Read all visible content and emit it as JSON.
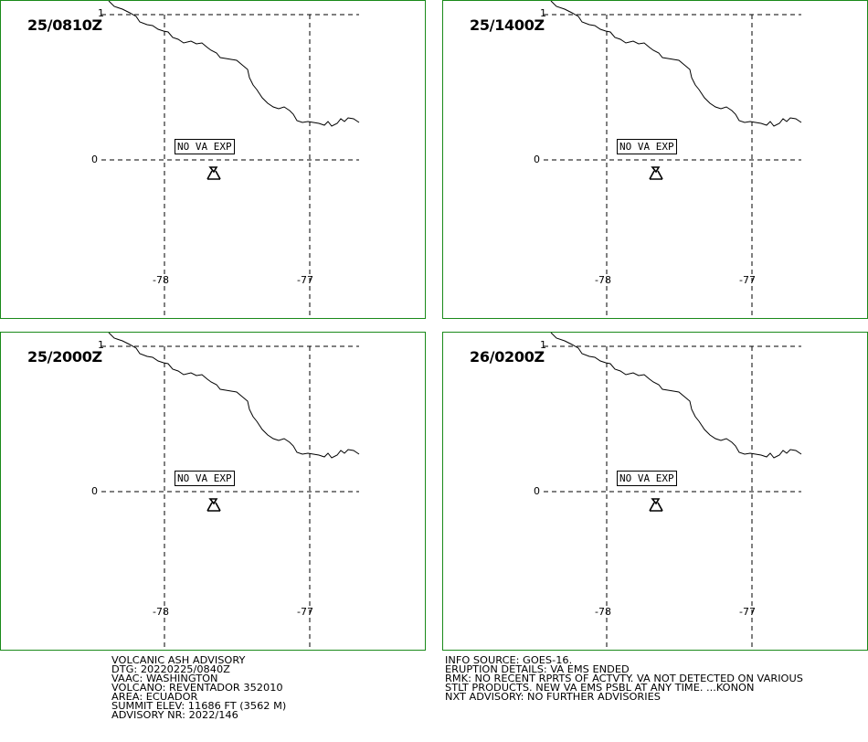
{
  "advisory": {
    "left_lines": [
      "VOLCANIC ASH ADVISORY",
      "DTG: 20220225/0840Z",
      "VAAC: WASHINGTON",
      "VOLCANO: REVENTADOR 352010",
      "AREA: ECUADOR",
      "SUMMIT ELEV: 11686 FT (3562 M)",
      "ADVISORY NR: 2022/146"
    ],
    "right_lines": [
      "INFO SOURCE: GOES-16.",
      "ERUPTION DETAILS: VA EMS ENDED",
      "RMK: NO RECENT RPRTS OF ACTVTY. VA NOT DETECTED ON VARIOUS",
      "STLT PRODUCTS. NEW VA EMS PSBL AT ANY TIME. ...KONON",
      "NXT ADVISORY: NO FURTHER ADVISORIES"
    ]
  },
  "panels": [
    {
      "time": "25/0810Z",
      "label": "NO VA EXP"
    },
    {
      "time": "25/1400Z",
      "label": "NO VA EXP"
    },
    {
      "time": "25/2000Z",
      "label": "NO VA EXP"
    },
    {
      "time": "26/0200Z",
      "label": "NO VA EXP"
    }
  ],
  "grid_labels": {
    "lat_top": "1",
    "lat_mid": "0",
    "lon_left": "-78",
    "lon_right": "-77"
  },
  "icons": {
    "volcano": "volcano-icon"
  },
  "colors": {
    "panel_border": "#1a8a1a",
    "lines": "#000000",
    "background": "#ffffff"
  }
}
